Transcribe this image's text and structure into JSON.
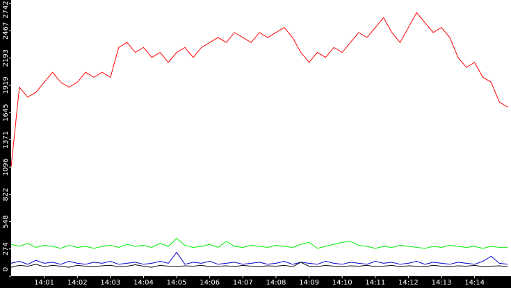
{
  "chart_data": {
    "type": "line",
    "x": [
      840,
      840.25,
      840.5,
      840.75,
      841,
      841.25,
      841.5,
      841.75,
      842,
      842.25,
      842.5,
      842.75,
      843,
      843.25,
      843.5,
      843.75,
      844,
      844.25,
      844.5,
      844.75,
      845,
      845.25,
      845.5,
      845.75,
      846,
      846.25,
      846.5,
      846.75,
      847,
      847.25,
      847.5,
      847.75,
      848,
      848.25,
      848.5,
      848.75,
      849,
      849.25,
      849.5,
      849.75,
      850,
      850.25,
      850.5,
      850.75,
      851,
      851.25,
      851.5,
      851.75,
      852,
      852.25,
      852.5,
      852.75,
      853,
      853.25,
      853.5,
      853.75,
      854,
      854.25,
      854.5,
      854.75,
      855
    ],
    "series": [
      {
        "color": "#ff0000",
        "values": [
          1100,
          1900,
          1800,
          1850,
          1950,
          2050,
          1950,
          1900,
          1950,
          2050,
          2000,
          2050,
          2000,
          2300,
          2350,
          2250,
          2300,
          2200,
          2250,
          2150,
          2250,
          2300,
          2200,
          2300,
          2350,
          2400,
          2350,
          2450,
          2400,
          2350,
          2450,
          2400,
          2450,
          2500,
          2400,
          2250,
          2150,
          2250,
          2200,
          2300,
          2250,
          2350,
          2450,
          2400,
          2500,
          2600,
          2450,
          2350,
          2500,
          2650,
          2550,
          2450,
          2500,
          2400,
          2200,
          2100,
          2150,
          2000,
          1950,
          1750,
          1700
        ]
      },
      {
        "color": "#00ee00",
        "values": [
          320,
          300,
          330,
          290,
          310,
          300,
          280,
          310,
          290,
          300,
          280,
          300,
          310,
          290,
          320,
          300,
          310,
          290,
          330,
          300,
          380,
          310,
          290,
          300,
          320,
          290,
          350,
          300,
          290,
          310,
          300,
          290,
          310,
          300,
          290,
          320,
          340,
          280,
          300,
          320,
          340,
          350,
          310,
          300,
          280,
          300,
          290,
          310,
          300,
          290,
          280,
          300,
          290,
          310,
          300,
          290,
          300,
          280,
          300,
          290,
          290
        ]
      },
      {
        "color": "#0000cc",
        "values": [
          130,
          150,
          120,
          160,
          130,
          140,
          120,
          150,
          130,
          120,
          140,
          130,
          150,
          120,
          130,
          140,
          120,
          130,
          150,
          130,
          240,
          120,
          140,
          130,
          150,
          120,
          130,
          140,
          120,
          130,
          140,
          120,
          130,
          150,
          120,
          140,
          130,
          120,
          150,
          130,
          120,
          140,
          130,
          120,
          150,
          130,
          140,
          120,
          130,
          150,
          120,
          140,
          130,
          120,
          140,
          130,
          120,
          150,
          200,
          130,
          120
        ]
      },
      {
        "color": "#000000",
        "values": [
          90,
          110,
          100,
          120,
          95,
          110,
          100,
          90,
          110,
          100,
          95,
          105,
          110,
          95,
          100,
          115,
          100,
          90,
          110,
          100,
          95,
          105,
          100,
          110,
          95,
          100,
          105,
          95,
          110,
          100,
          95,
          105,
          100,
          110,
          95,
          140,
          100,
          95,
          110,
          100,
          95,
          105,
          100,
          110,
          95,
          100,
          110,
          95,
          105,
          100,
          95,
          110,
          100,
          95,
          105,
          100,
          110,
          95,
          100,
          105,
          95
        ]
      }
    ],
    "xlim": [
      840,
      855.1
    ],
    "xticks": [
      {
        "value": 841,
        "label": "14:01"
      },
      {
        "value": 842,
        "label": "14:02"
      },
      {
        "value": 843,
        "label": "14:03"
      },
      {
        "value": 844,
        "label": "14:04"
      },
      {
        "value": 845,
        "label": "14:05"
      },
      {
        "value": 846,
        "label": "14:06"
      },
      {
        "value": 847,
        "label": "14:07"
      },
      {
        "value": 848,
        "label": "14:08"
      },
      {
        "value": 849,
        "label": "14:09"
      },
      {
        "value": 850,
        "label": "14:10"
      },
      {
        "value": 851,
        "label": "14:11"
      },
      {
        "value": 852,
        "label": "14:12"
      },
      {
        "value": 853,
        "label": "14:13"
      },
      {
        "value": 854,
        "label": "14:14"
      }
    ],
    "ylim": [
      0,
      2742
    ],
    "yticks": [
      0,
      274,
      548,
      822,
      1096,
      1371,
      1645,
      1919,
      2193,
      2467,
      2742
    ]
  }
}
